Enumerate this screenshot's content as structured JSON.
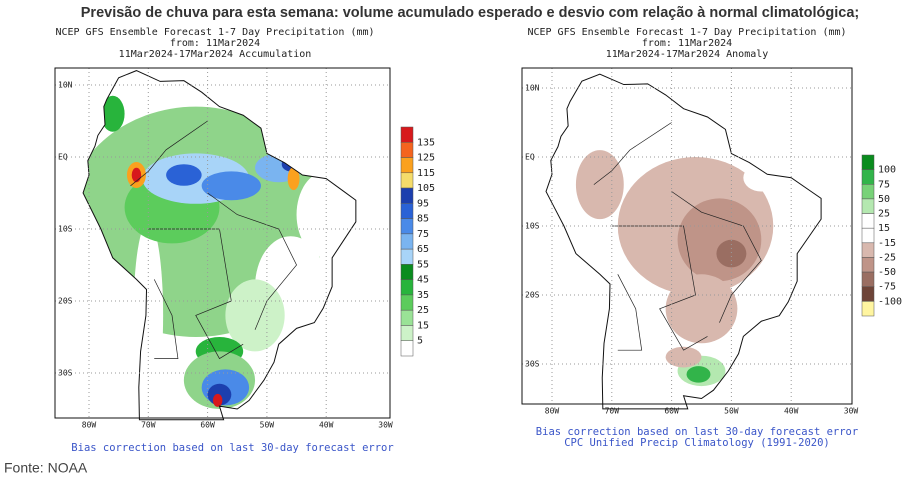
{
  "title": "Previsão de chuva para esta semana: volume acumulado esperado e desvio com relação à normal climatológica;",
  "panels": [
    {
      "header": [
        "NCEP GFS Ensemble Forecast 1-7 Day Precipitation (mm)",
        "from: 11Mar2024",
        "11Mar2024-17Mar2024 Accumulation"
      ],
      "lat_labels": [
        "10N",
        "EQ",
        "10S",
        "20S",
        "30S"
      ],
      "lon_labels": [
        "80W",
        "70W",
        "60W",
        "50W",
        "40W",
        "30W"
      ],
      "legend": [
        {
          "label": "135",
          "color": "#d7191c"
        },
        {
          "label": "125",
          "color": "#f4641e"
        },
        {
          "label": "115",
          "color": "#fba11e"
        },
        {
          "label": "105",
          "color": "#f5dc6a"
        },
        {
          "label": "95",
          "color": "#1c3fae"
        },
        {
          "label": "85",
          "color": "#2a62d6"
        },
        {
          "label": "75",
          "color": "#4a8ae8"
        },
        {
          "label": "65",
          "color": "#7ab4f0"
        },
        {
          "label": "55",
          "color": "#a8d4f8"
        },
        {
          "label": "45",
          "color": "#0a8c1e"
        },
        {
          "label": "35",
          "color": "#28b43c"
        },
        {
          "label": "25",
          "color": "#5ccc5c"
        },
        {
          "label": "15",
          "color": "#9ae296"
        },
        {
          "label": "5",
          "color": "#cdf2c8"
        }
      ],
      "end_color": "#ffffff",
      "footer": [
        "Bias correction based on last 30-day forecast error"
      ]
    },
    {
      "header": [
        "NCEP GFS Ensemble Forecast 1-7 Day Precipitation (mm)",
        "from: 11Mar2024",
        "11Mar2024-17Mar2024 Anomaly"
      ],
      "lat_labels": [
        "10N",
        "EQ",
        "10S",
        "20S",
        "30S"
      ],
      "lon_labels": [
        "80W",
        "70W",
        "60W",
        "50W",
        "40W",
        "30W"
      ],
      "legend": [
        {
          "label": "100",
          "color": "#0a8c1e"
        },
        {
          "label": "75",
          "color": "#32b44a"
        },
        {
          "label": "50",
          "color": "#78d278"
        },
        {
          "label": "25",
          "color": "#b4e8b0"
        },
        {
          "label": "15",
          "color": "#ffffff"
        },
        {
          "label": "-15",
          "color": "#ffffff"
        },
        {
          "label": "-25",
          "color": "#d8b8ae"
        },
        {
          "label": "-50",
          "color": "#bf9488"
        },
        {
          "label": "-75",
          "color": "#9a6e62"
        },
        {
          "label": "-100",
          "color": "#6e4438"
        }
      ],
      "end_color": "#fff5a0",
      "footer": [
        "Bias correction based on last 30-day forecast error",
        "CPC Unified Precip Climatology (1991-2020)"
      ]
    }
  ],
  "source": "Fonte: NOAA"
}
